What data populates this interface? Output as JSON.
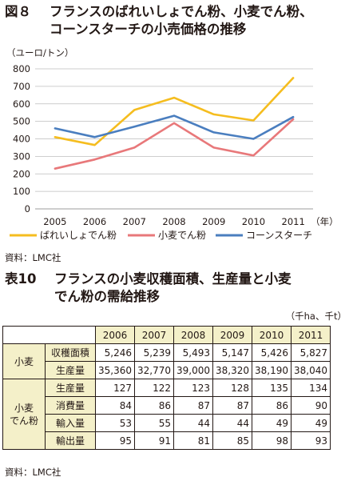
{
  "figure": {
    "number": "図８",
    "title_line1": "フランスのばれいしょでん粉、小麦でん粉、",
    "title_line2": "コーンスターチの小売価格の推移",
    "source": "資料：LMC社"
  },
  "chart_data": {
    "type": "line",
    "ylabel": "（ユーロ/トン）",
    "xlabel_suffix": "（年）",
    "x": [
      "2005",
      "2006",
      "2007",
      "2008",
      "2009",
      "2010",
      "2011"
    ],
    "ylim": [
      0,
      800
    ],
    "yticks": [
      0,
      100,
      200,
      300,
      400,
      500,
      600,
      700,
      800
    ],
    "grid": "horizontal",
    "legend_position": "bottom",
    "series": [
      {
        "name": "ばれいしょでん粉",
        "color": "#f5bd1f",
        "values": [
          410,
          365,
          565,
          635,
          540,
          505,
          748
        ]
      },
      {
        "name": "小麦でん粉",
        "color": "#e8787a",
        "values": [
          230,
          282,
          350,
          490,
          350,
          305,
          512
        ]
      },
      {
        "name": "コーンスターチ",
        "color": "#4a7ebf",
        "values": [
          460,
          410,
          470,
          532,
          437,
          400,
          525
        ]
      }
    ]
  },
  "table": {
    "number": "表10",
    "title_line1": "フランスの小麦収穫面積、生産量と小麦",
    "title_line2": "でん粉の需給推移",
    "unit": "（千ha、千t）",
    "years": [
      "2006",
      "2007",
      "2008",
      "2009",
      "2010",
      "2011"
    ],
    "groups": [
      {
        "label": "小麦",
        "rows": [
          {
            "item": "収穫面積",
            "values": [
              "5,246",
              "5,239",
              "5,493",
              "5,147",
              "5,426",
              "5,827"
            ]
          },
          {
            "item": "生産量",
            "values": [
              "35,360",
              "32,770",
              "39,000",
              "38,320",
              "38,190",
              "38,040"
            ]
          }
        ]
      },
      {
        "label": "小麦\nでん粉",
        "rows": [
          {
            "item": "生産量",
            "values": [
              "127",
              "122",
              "123",
              "128",
              "135",
              "134"
            ]
          },
          {
            "item": "消費量",
            "values": [
              "84",
              "86",
              "87",
              "87",
              "86",
              "90"
            ]
          },
          {
            "item": "輸入量",
            "values": [
              "53",
              "55",
              "44",
              "44",
              "49",
              "49"
            ]
          },
          {
            "item": "輸出量",
            "values": [
              "95",
              "91",
              "81",
              "85",
              "98",
              "93"
            ]
          }
        ]
      }
    ],
    "source": "資料：LMC社"
  }
}
